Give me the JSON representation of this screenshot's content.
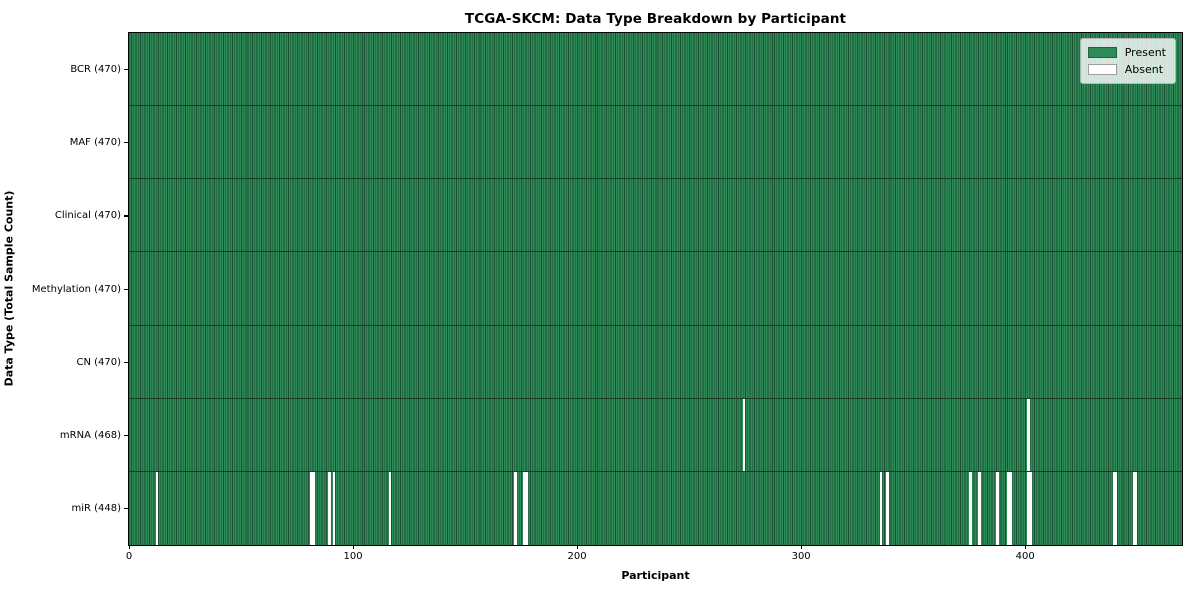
{
  "figure": {
    "title": "TCGA-SKCM: Data Type Breakdown by Participant",
    "xlabel": "Participant",
    "ylabel": "Data Type (Total Sample Count)"
  },
  "chart_data": {
    "type": "heatmap",
    "title": "TCGA-SKCM: Data Type Breakdown by Participant",
    "xlabel": "Participant",
    "ylabel": "Data Type (Total Sample Count)",
    "x_range": [
      0,
      470
    ],
    "x_ticks": [
      0,
      100,
      200,
      300,
      400
    ],
    "grid": false,
    "legend_position": "upper right",
    "colors": {
      "present": "#2e8b57",
      "absent": "#ffffff",
      "cell_edge": "#1b5133",
      "row_divider": "#163e27",
      "frame": "#000000",
      "legend_bg": "rgba(255,255,255,0.8)"
    },
    "legend": [
      {
        "label": "Present",
        "color": "#2e8b57"
      },
      {
        "label": "Absent",
        "color": "#ffffff"
      }
    ],
    "rows": [
      {
        "label": "BCR (470)",
        "present_count": 470,
        "absent_indices": []
      },
      {
        "label": "MAF (470)",
        "present_count": 470,
        "absent_indices": []
      },
      {
        "label": "Clinical (470)",
        "present_count": 470,
        "absent_indices": []
      },
      {
        "label": "Methylation (470)",
        "present_count": 470,
        "absent_indices": []
      },
      {
        "label": "CN (470)",
        "present_count": 470,
        "absent_indices": []
      },
      {
        "label": "mRNA (468)",
        "present_count": 468,
        "absent_indices": [
          274,
          401
        ]
      },
      {
        "label": "miR (448)",
        "present_count": 448,
        "absent_indices": [
          12,
          81,
          82,
          89,
          91,
          116,
          172,
          176,
          177,
          335,
          338,
          375,
          379,
          387,
          392,
          393,
          401,
          402,
          439,
          440,
          448,
          449
        ]
      }
    ]
  }
}
